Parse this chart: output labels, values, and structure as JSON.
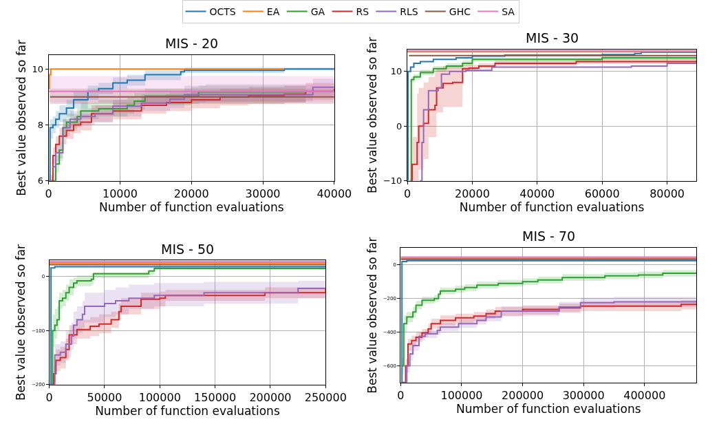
{
  "chart_data": [
    {
      "type": "step",
      "title": "MIS - 20",
      "xlabel": "Number of function evaluations",
      "ylabel": "Best value observed so far",
      "xlim": [
        0,
        40000
      ],
      "ylim": [
        6,
        10.5
      ],
      "xticks": [
        0,
        10000,
        20000,
        30000,
        40000
      ],
      "yticks": [
        6,
        8,
        10
      ],
      "grid": true,
      "legend": "top",
      "series": [
        {
          "name": "OCTS",
          "color": "#1f77b4",
          "x": [
            0,
            200,
            600,
            1000,
            1500,
            2500,
            3500,
            5500,
            7000,
            9000,
            11000,
            13500,
            18500,
            19000,
            33000,
            40000
          ],
          "values": [
            6,
            7.9,
            8.0,
            8.2,
            8.4,
            8.6,
            8.9,
            9.2,
            9.3,
            9.5,
            9.6,
            9.8,
            9.9,
            9.95,
            10.0,
            10.0
          ],
          "lower": [
            6,
            7.5,
            7.7,
            7.9,
            8.1,
            8.3,
            8.6,
            8.9,
            9.1,
            9.3,
            9.4,
            9.6,
            9.8,
            9.85,
            9.95,
            9.95
          ],
          "upper": [
            6.2,
            8.2,
            8.3,
            8.5,
            8.7,
            8.9,
            9.2,
            9.4,
            9.5,
            9.7,
            9.8,
            9.95,
            10.0,
            10.05,
            10.05,
            10.05
          ]
        },
        {
          "name": "EA",
          "color": "#ff7f0e",
          "x": [
            0,
            100,
            300,
            33000
          ],
          "values": [
            9.3,
            9.8,
            10.0,
            10.0
          ]
        },
        {
          "name": "GA",
          "color": "#2ca02c",
          "x": [
            500,
            1000,
            1500,
            2000,
            2500,
            4000,
            4500,
            7000,
            11000,
            12000,
            13500,
            20000,
            21000,
            28000,
            36000
          ],
          "values": [
            6,
            6.6,
            7.1,
            7.9,
            8.1,
            8.3,
            8.5,
            8.58,
            8.7,
            8.85,
            9.03,
            9.03,
            9.18,
            9.18,
            9.18
          ],
          "lower": [
            6,
            6.3,
            6.8,
            7.6,
            7.8,
            8.0,
            8.2,
            8.3,
            8.4,
            8.55,
            8.7,
            8.75,
            8.8,
            8.8,
            8.85
          ],
          "upper": [
            6.2,
            6.9,
            7.4,
            8.2,
            8.4,
            8.6,
            8.8,
            8.9,
            9.0,
            9.15,
            9.3,
            9.35,
            9.4,
            9.4,
            9.45
          ]
        },
        {
          "name": "RS",
          "color": "#d62728",
          "x": [
            300,
            600,
            1000,
            1500,
            2500,
            3500,
            4500,
            6000,
            9000,
            13000,
            16500,
            20000,
            24000,
            28000,
            33000,
            36000,
            40000
          ],
          "values": [
            6,
            6.9,
            7.3,
            7.6,
            7.8,
            8.0,
            8.1,
            8.4,
            8.5,
            8.7,
            8.8,
            8.9,
            9.0,
            9.05,
            9.1,
            9.2,
            9.3
          ],
          "lower": [
            6,
            6.6,
            7.0,
            7.3,
            7.5,
            7.7,
            7.8,
            8.1,
            8.2,
            8.4,
            8.5,
            8.6,
            8.7,
            8.75,
            8.8,
            8.9,
            9.0
          ],
          "upper": [
            6.2,
            7.2,
            7.6,
            7.9,
            8.1,
            8.3,
            8.4,
            8.7,
            8.8,
            9.0,
            9.1,
            9.2,
            9.3,
            9.35,
            9.4,
            9.5,
            9.6
          ]
        },
        {
          "name": "RLS",
          "color": "#9467bd",
          "x": [
            500,
            1000,
            2000,
            3000,
            4500,
            6500,
            9000,
            13000,
            17000,
            19000,
            22000,
            37000,
            40000
          ],
          "values": [
            6.5,
            7.0,
            7.9,
            8.2,
            8.3,
            8.4,
            8.67,
            8.78,
            8.92,
            9.08,
            9.08,
            9.35,
            9.35
          ],
          "lower": [
            6.2,
            6.7,
            7.6,
            7.9,
            8.0,
            8.1,
            8.3,
            8.5,
            8.6,
            8.8,
            8.85,
            9.05,
            9.05
          ],
          "upper": [
            6.8,
            7.3,
            8.2,
            8.5,
            8.6,
            8.7,
            8.9,
            9.1,
            9.2,
            9.4,
            9.45,
            9.65,
            9.65
          ]
        },
        {
          "name": "GHC",
          "color": "#8c564b",
          "x": [
            200,
            40000
          ],
          "values": [
            9.0,
            9.0
          ],
          "lower": [
            8.75,
            8.75
          ],
          "upper": [
            9.3,
            9.3
          ]
        },
        {
          "name": "SA",
          "color": "#e377c2",
          "x": [
            0,
            40000
          ],
          "values": [
            9.2,
            9.2
          ],
          "lower": [
            8.8,
            8.8
          ],
          "upper": [
            9.75,
            9.75
          ]
        }
      ]
    },
    {
      "type": "step",
      "title": "MIS - 30",
      "xlabel": "Number of function evaluations",
      "ylabel": "Best value observed so far",
      "xlim": [
        0,
        89000
      ],
      "ylim": [
        -10,
        14
      ],
      "xticks": [
        0,
        20000,
        40000,
        60000,
        80000
      ],
      "yticks": [
        -10,
        0,
        10
      ],
      "grid": true,
      "legend": "top",
      "series": [
        {
          "name": "OCTS",
          "color": "#1f77b4",
          "x": [
            0,
            200,
            1000,
            2000,
            4000,
            8000,
            15000,
            20000,
            30000,
            60000,
            70000,
            72000,
            89000
          ],
          "values": [
            -10,
            10,
            10.8,
            11.5,
            11.8,
            12.2,
            12.5,
            12.8,
            13.0,
            13.1,
            13.3,
            13.5,
            13.6
          ]
        },
        {
          "name": "EA",
          "color": "#ff7f0e",
          "x": [
            0,
            89000
          ],
          "values": [
            13.6,
            13.6
          ]
        },
        {
          "name": "GA",
          "color": "#2ca02c",
          "x": [
            700,
            1200,
            2000,
            4000,
            8000,
            12000,
            17000,
            20000,
            60000,
            89000
          ],
          "values": [
            -10,
            8.5,
            9,
            9.8,
            10.5,
            11.0,
            11.5,
            12.2,
            12.5,
            12.6
          ],
          "lower": [
            -10,
            8.0,
            8.5,
            9.3,
            10.0,
            10.5,
            11.0,
            11.8,
            12.1,
            12.2
          ],
          "upper": [
            -10,
            9.0,
            9.5,
            10.3,
            11.0,
            11.5,
            12.0,
            12.6,
            12.9,
            13.0
          ]
        },
        {
          "name": "RS",
          "color": "#d62728",
          "x": [
            1200,
            1500,
            3000,
            3500,
            5000,
            6500,
            8500,
            9000,
            11000,
            14000,
            17000,
            19000,
            22000,
            27000,
            52000,
            89000
          ],
          "values": [
            -10,
            -7,
            -3,
            0,
            0.5,
            3,
            3.8,
            7,
            7.8,
            8.0,
            10.5,
            10.6,
            11,
            11.5,
            11.8,
            12.0
          ],
          "lower": [
            -10,
            -10,
            -10,
            -8,
            -6,
            -2,
            -2,
            2.5,
            3.5,
            3.5,
            10,
            10.2,
            10.6,
            11.1,
            11.4,
            11.6
          ],
          "upper": [
            -10,
            -2,
            6,
            7,
            8,
            9,
            10,
            10.5,
            11,
            11,
            11.2,
            11.2,
            11.5,
            12,
            12.3,
            12.4
          ]
        },
        {
          "name": "RLS",
          "color": "#9467bd",
          "x": [
            3800,
            4500,
            5000,
            6500,
            9500,
            10500,
            13000,
            18000,
            26000,
            69000,
            80000,
            89000
          ],
          "values": [
            -10,
            -3,
            3,
            6.5,
            7,
            9.5,
            10,
            10.2,
            10.8,
            11.0,
            11.5,
            11.8
          ]
        },
        {
          "name": "GHC",
          "color": "#8c564b",
          "x": [
            500,
            89000
          ],
          "values": [
            12.9,
            12.9
          ]
        },
        {
          "name": "SA",
          "color": "#e377c2",
          "x": [
            0,
            89000
          ],
          "values": [
            13.8,
            13.8
          ]
        }
      ]
    },
    {
      "type": "step",
      "title": "MIS - 50",
      "xlabel": "Number of function evaluations",
      "ylabel": "Best value observed so far",
      "xlim": [
        0,
        250000
      ],
      "ylim": [
        -200,
        30
      ],
      "xticks": [
        0,
        50000,
        100000,
        150000,
        200000,
        250000
      ],
      "yticks": [
        -200,
        -100,
        0
      ],
      "grid": true,
      "legend": "top",
      "series": [
        {
          "name": "OCTS",
          "color": "#1f77b4",
          "x": [
            0,
            1500,
            5000,
            250000
          ],
          "values": [
            -200,
            16,
            18,
            19
          ]
        },
        {
          "name": "EA",
          "color": "#ff7f0e",
          "x": [
            0,
            250000
          ],
          "values": [
            25,
            25
          ]
        },
        {
          "name": "GA",
          "color": "#2ca02c",
          "x": [
            2500,
            3000,
            5000,
            7000,
            9000,
            12000,
            15000,
            18000,
            22000,
            25000,
            38000,
            40000,
            90000,
            95000,
            250000
          ],
          "values": [
            -200,
            -100,
            -90,
            -80,
            -45,
            -40,
            -30,
            -20,
            -12,
            -8,
            -5,
            5,
            10,
            15,
            15
          ],
          "lower": [
            -200,
            -130,
            -115,
            -100,
            -60,
            -55,
            -45,
            -35,
            -22,
            -18,
            -15,
            -3,
            3,
            16,
            18
          ],
          "upper": [
            -200,
            -70,
            -60,
            -55,
            -30,
            -25,
            -15,
            -5,
            -2,
            2,
            5,
            8,
            12,
            20,
            22
          ]
        },
        {
          "name": "RS",
          "color": "#d62728",
          "x": [
            2000,
            4000,
            6000,
            10000,
            15000,
            18000,
            25000,
            37000,
            45000,
            56000,
            63000,
            65000,
            83000,
            100000,
            105000,
            195000,
            250000
          ],
          "values": [
            -200,
            -180,
            -155,
            -150,
            -135,
            -108,
            -98,
            -92,
            -88,
            -80,
            -65,
            -55,
            -42,
            -40,
            -35,
            -30,
            -23
          ],
          "lower": [
            -200,
            -195,
            -175,
            -170,
            -155,
            -125,
            -115,
            -110,
            -105,
            -95,
            -80,
            -70,
            -60,
            -55,
            -45,
            -40,
            -33
          ],
          "upper": [
            -200,
            -165,
            -135,
            -130,
            -115,
            -90,
            -80,
            -75,
            -70,
            -65,
            -50,
            -40,
            -30,
            -28,
            -25,
            -20,
            -13
          ]
        },
        {
          "name": "RLS",
          "color": "#9467bd",
          "x": [
            3000,
            5000,
            10000,
            15000,
            20000,
            22000,
            25000,
            30000,
            32000,
            50000,
            60000,
            72000,
            95000,
            140000,
            225000,
            250000
          ],
          "values": [
            -200,
            -145,
            -140,
            -125,
            -110,
            -90,
            -80,
            -70,
            -55,
            -50,
            -45,
            -40,
            -35,
            -30,
            -22,
            -22
          ],
          "lower": [
            -200,
            -165,
            -160,
            -150,
            -135,
            -115,
            -105,
            -95,
            -85,
            -75,
            -70,
            -60,
            -55,
            -50,
            -40,
            -40
          ],
          "upper": [
            -200,
            -125,
            -120,
            -100,
            -85,
            -65,
            -55,
            -45,
            -30,
            -25,
            -20,
            -15,
            -12,
            -10,
            -8,
            -8
          ]
        },
        {
          "name": "GHC",
          "color": "#8c564b",
          "x": [
            0,
            250000
          ],
          "values": [
            22,
            22
          ]
        },
        {
          "name": "SA",
          "color": "#e377c2",
          "x": [
            0,
            250000
          ],
          "values": [
            28,
            28
          ]
        }
      ]
    },
    {
      "type": "step",
      "title": "MIS - 70",
      "xlabel": "Number of function evaluations",
      "ylabel": "Best value observed so far",
      "xlim": [
        0,
        485000
      ],
      "ylim": [
        -700,
        100
      ],
      "xticks": [
        0,
        100000,
        200000,
        300000,
        400000
      ],
      "yticks": [
        -600,
        -400,
        -200,
        0
      ],
      "grid": true,
      "legend": "top",
      "series": [
        {
          "name": "OCTS",
          "color": "#1f77b4",
          "x": [
            0,
            2000,
            10000,
            485000
          ],
          "values": [
            -700,
            20,
            25,
            28
          ]
        },
        {
          "name": "EA",
          "color": "#ff7f0e",
          "x": [
            0,
            485000
          ],
          "values": [
            39,
            39
          ]
        },
        {
          "name": "GA",
          "color": "#2ca02c",
          "x": [
            2000,
            5000,
            10000,
            20000,
            25000,
            35000,
            55000,
            62000,
            65000,
            90000,
            105000,
            125000,
            160000,
            200000,
            225000,
            265000,
            335000,
            390000,
            430000,
            485000
          ],
          "values": [
            -600,
            -350,
            -310,
            -280,
            -240,
            -210,
            -200,
            -175,
            -155,
            -145,
            -135,
            -120,
            -110,
            -100,
            -90,
            -75,
            -65,
            -60,
            -50,
            -45
          ],
          "lower": [
            -650,
            -400,
            -340,
            -310,
            -265,
            -230,
            -220,
            -195,
            -175,
            -165,
            -155,
            -140,
            -130,
            -120,
            -110,
            -95,
            -85,
            -80,
            -70,
            -65
          ],
          "upper": [
            -550,
            -300,
            -280,
            -250,
            -215,
            -190,
            -180,
            -155,
            -135,
            -125,
            -115,
            -100,
            -90,
            -80,
            -70,
            -55,
            -45,
            -40,
            -30,
            -25
          ]
        },
        {
          "name": "RS",
          "color": "#d62728",
          "x": [
            2000,
            8000,
            12000,
            18000,
            25000,
            35000,
            45000,
            50000,
            65000,
            90000,
            120000,
            140000,
            155000,
            200000,
            260000,
            295000,
            460000,
            485000
          ],
          "values": [
            -700,
            -600,
            -470,
            -450,
            -430,
            -405,
            -380,
            -350,
            -330,
            -315,
            -305,
            -290,
            -275,
            -265,
            -255,
            -245,
            -235,
            -230
          ],
          "lower": [
            -700,
            -640,
            -510,
            -490,
            -460,
            -430,
            -410,
            -380,
            -360,
            -345,
            -335,
            -320,
            -305,
            -295,
            -285,
            -275,
            -265,
            -260
          ],
          "upper": [
            -700,
            -560,
            -440,
            -420,
            -400,
            -380,
            -350,
            -320,
            -300,
            -290,
            -280,
            -265,
            -250,
            -240,
            -230,
            -220,
            -210,
            -205
          ]
        },
        {
          "name": "RLS",
          "color": "#9467bd",
          "x": [
            3000,
            10000,
            15000,
            20000,
            30000,
            40000,
            60000,
            65000,
            95000,
            125000,
            140000,
            165000,
            260000,
            295000,
            350000,
            485000
          ],
          "values": [
            -700,
            -600,
            -530,
            -480,
            -425,
            -410,
            -390,
            -370,
            -350,
            -330,
            -310,
            -275,
            -250,
            -225,
            -220,
            -215
          ],
          "lower": [
            -700,
            -640,
            -570,
            -510,
            -450,
            -435,
            -415,
            -395,
            -375,
            -355,
            -335,
            -305,
            -280,
            -255,
            -250,
            -245
          ],
          "upper": [
            -700,
            -560,
            -490,
            -450,
            -400,
            -385,
            -365,
            -345,
            -325,
            -300,
            -280,
            -245,
            -220,
            -195,
            -190,
            -185
          ]
        },
        {
          "name": "GHC",
          "color": "#8c564b",
          "x": [
            0,
            485000
          ],
          "values": [
            33,
            33
          ]
        },
        {
          "name": "SA",
          "color": "#e377c2",
          "x": [
            0,
            485000
          ],
          "values": [
            46,
            46
          ]
        }
      ]
    }
  ]
}
